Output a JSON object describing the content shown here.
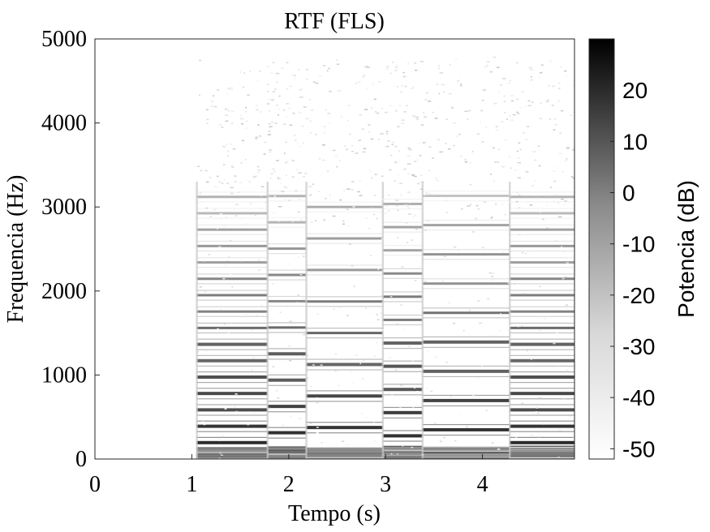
{
  "chart_data": {
    "type": "heatmap",
    "title": "RTF (FLS)",
    "xlabel": "Tempo (s)",
    "ylabel": "Frequencia (Hz)",
    "xlim": [
      0,
      4.95
    ],
    "ylim": [
      0,
      5000
    ],
    "x_ticks": [
      0,
      1,
      2,
      3,
      4
    ],
    "y_ticks": [
      0,
      1000,
      2000,
      3000,
      4000,
      5000
    ],
    "colorbar": {
      "label": "Potencia (dB)",
      "range": [
        -52,
        30
      ],
      "ticks": [
        20,
        10,
        0,
        -10,
        -20,
        -30,
        -40,
        -50
      ],
      "colormap": [
        "#ffffff",
        "#000000"
      ]
    },
    "notes": [
      {
        "start": 1.05,
        "end": 1.78,
        "f0": 195
      },
      {
        "start": 1.78,
        "end": 2.18,
        "f0": 313
      },
      {
        "start": 2.18,
        "end": 2.97,
        "f0": 375
      },
      {
        "start": 2.97,
        "end": 3.38,
        "f0": 276
      },
      {
        "start": 3.38,
        "end": 4.28,
        "f0": 348
      },
      {
        "start": 4.28,
        "end": 4.95,
        "f0": 195
      }
    ]
  }
}
